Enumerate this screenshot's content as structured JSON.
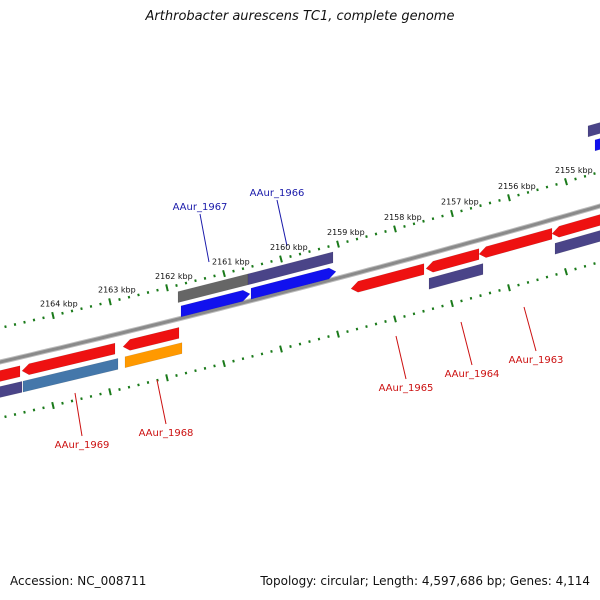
{
  "title": "Arthrobacter aurescens TC1, complete genome",
  "footer": {
    "accession": "Accession: NC_008711",
    "stats": "Topology: circular; Length: 4,597,686 bp; Genes: 4,114"
  },
  "colors": {
    "backbone": "#8a8a8a",
    "scale_tick": "#1a7a1a",
    "forward_label": "#1a1aaa",
    "reverse_label": "#cc1111",
    "red_gene": "#ee1111",
    "navy_gene": "#4a4488",
    "blue_gene": "#1111ee",
    "gray_gene": "#666666",
    "steel_gene": "#4477aa",
    "orange_gene": "#ff9900"
  },
  "scale_labels": [
    "2164 kbp",
    "2163 kbp",
    "2162 kbp",
    "2161 kbp",
    "2160 kbp",
    "2159 kbp",
    "2158 kbp",
    "2157 kbp",
    "2156 kbp",
    "2155 kbp"
  ],
  "gene_labels": {
    "forward": [
      "AAur_1967",
      "AAur_1966"
    ],
    "reverse": [
      "AAur_1969",
      "AAur_1968",
      "AAur_1965",
      "AAur_1964",
      "AAur_1963"
    ]
  }
}
